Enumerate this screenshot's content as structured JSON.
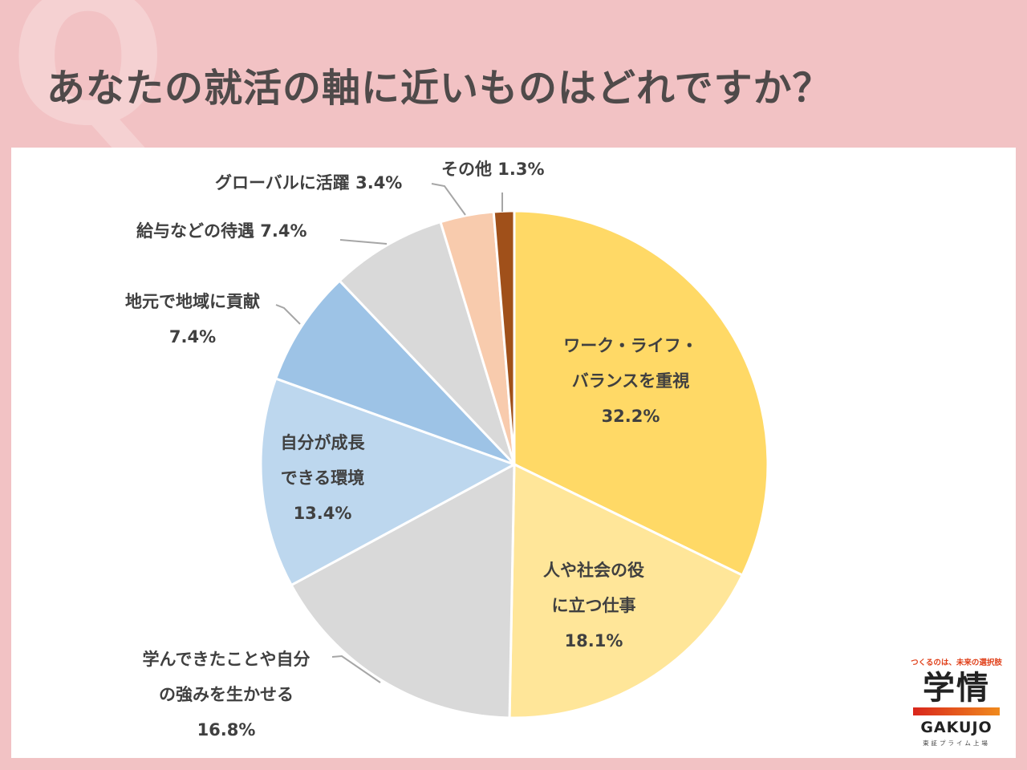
{
  "header": {
    "watermark": "Q",
    "title": "あなたの就活の軸に近いものはどれですか？"
  },
  "chart_data": {
    "type": "pie",
    "title": "あなたの就活の軸に近いものはどれですか？",
    "start_angle_deg": 0,
    "direction": "clockwise",
    "slices": [
      {
        "label": "ワーク・ライフ・バランスを重視",
        "value": 32.2,
        "display": "32.2%",
        "color": "#FFD966"
      },
      {
        "label": "人や社会の役に立つ仕事",
        "value": 18.1,
        "display": "18.1%",
        "color": "#FFE699"
      },
      {
        "label": "学んできたことや自分の強みを生かせる",
        "value": 16.8,
        "display": "16.8%",
        "color": "#D9D9D9"
      },
      {
        "label": "自分が成長できる環境",
        "value": 13.4,
        "display": "13.4%",
        "color": "#BDD7EE"
      },
      {
        "label": "地元で地域に貢献",
        "value": 7.4,
        "display": "7.4%",
        "color": "#9DC3E6"
      },
      {
        "label": "給与などの待遇",
        "value": 7.4,
        "display": "7.4%",
        "color": "#D9D9D9"
      },
      {
        "label": "グローバルに活躍",
        "value": 3.4,
        "display": "3.4%",
        "color": "#F8CBAD"
      },
      {
        "label": "その他",
        "value": 1.3,
        "display": "1.3%",
        "color": "#A0501A"
      }
    ],
    "labels_display": {
      "s0": {
        "line1": "ワーク・ライフ・",
        "line2": "バランスを重視",
        "pct": "32.2%"
      },
      "s1": {
        "line1": "人や社会の役",
        "line2": "に立つ仕事",
        "pct": "18.1%"
      },
      "s2": {
        "line1": "学んできたことや自分",
        "line2": "の強みを生かせる",
        "pct": "16.8%"
      },
      "s3": {
        "line1": "自分が成長",
        "line2": "できる環境",
        "pct": "13.4%"
      },
      "s4": {
        "line1": "地元で地域に貢献",
        "pct": "7.4%"
      },
      "s5": {
        "line1": "給与などの待遇 7.4%"
      },
      "s6": {
        "line1": "グローバルに活躍 3.4%"
      },
      "s7": {
        "line1": "その他 1.3%"
      }
    },
    "legend": "none"
  },
  "logo": {
    "tagline": "つくるのは、未来の選択肢",
    "kanji": "学情",
    "english": "GAKUJO",
    "subtitle": "東証プライム上場",
    "accent_colors": [
      "#D9261C",
      "#F08A1D"
    ]
  },
  "colors": {
    "background": "#F2C2C4",
    "panel": "#FFFFFF",
    "title_text": "#4F4A4A",
    "label_text": "#404040",
    "leader_line": "#A6A6A6"
  }
}
